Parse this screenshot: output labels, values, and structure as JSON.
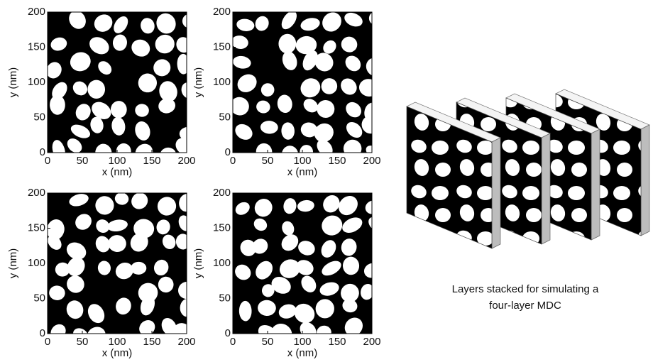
{
  "chart_data": [
    {
      "type": "image",
      "xlabel": "x (nm)",
      "ylabel": "y (nm)",
      "xlim": [
        0,
        200
      ],
      "ylim": [
        0,
        200
      ],
      "xticks": [
        0,
        50,
        100,
        150,
        200
      ],
      "yticks": [
        0,
        50,
        100,
        150,
        200
      ]
    },
    {
      "type": "image",
      "xlabel": "x (nm)",
      "ylabel": "y (nm)",
      "xlim": [
        0,
        200
      ],
      "ylim": [
        0,
        200
      ],
      "xticks": [
        0,
        50,
        100,
        150,
        200
      ],
      "yticks": [
        0,
        50,
        100,
        150,
        200
      ]
    },
    {
      "type": "image",
      "xlabel": "x (nm)",
      "ylabel": "y (nm)",
      "xlim": [
        0,
        200
      ],
      "ylim": [
        0,
        200
      ],
      "xticks": [
        0,
        50,
        100,
        150,
        200
      ],
      "yticks": [
        0,
        50,
        100,
        150,
        200
      ]
    },
    {
      "type": "image",
      "xlabel": "x (nm)",
      "ylabel": "y (nm)",
      "xlim": [
        0,
        200
      ],
      "ylim": [
        0,
        200
      ],
      "xticks": [
        0,
        50,
        100,
        150,
        200
      ],
      "yticks": [
        0,
        50,
        100,
        150,
        200
      ]
    }
  ],
  "annotation": [
    "Layers stacked for simulating a",
    "four-layer MDC"
  ]
}
